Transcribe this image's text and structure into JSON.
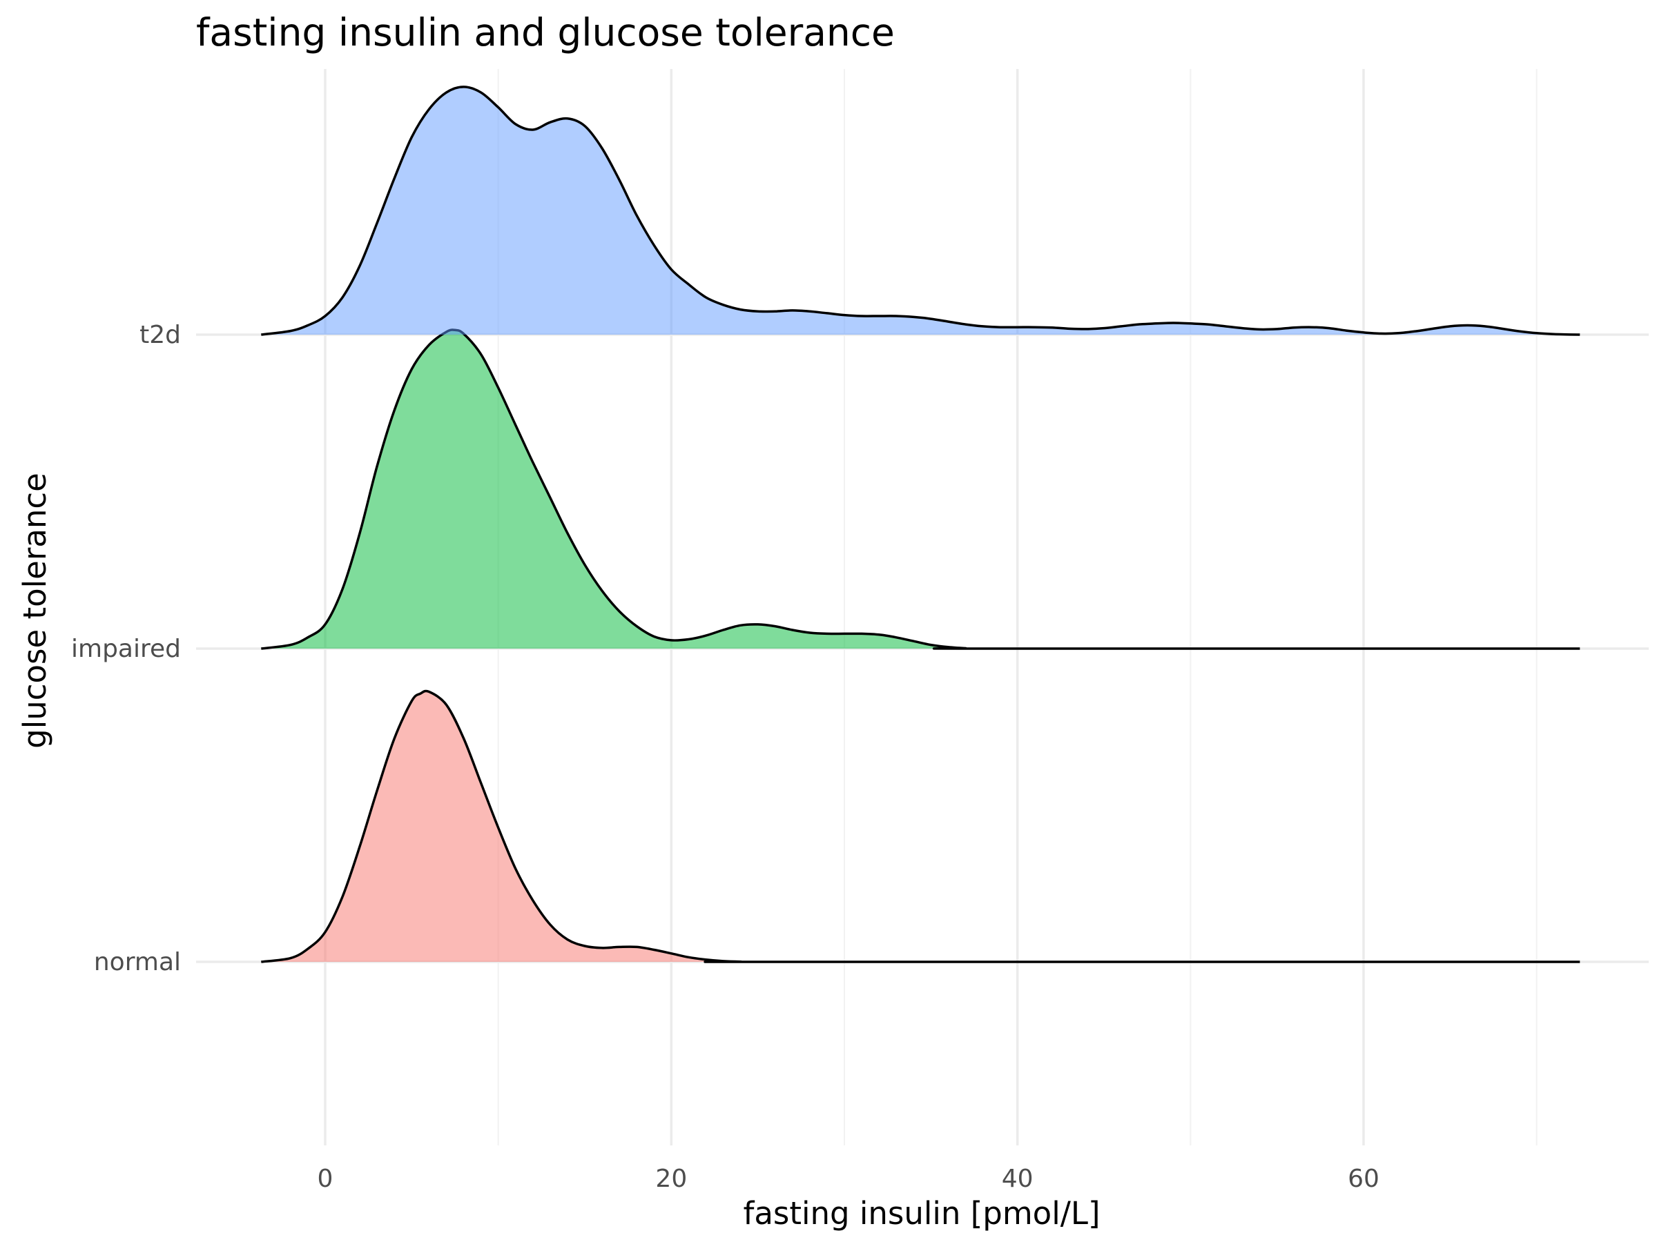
{
  "chart_data": {
    "type": "ridgeline",
    "title": "fasting insulin and glucose tolerance",
    "xlabel": "fasting insulin [pmol/L]",
    "ylabel": "glucose tolerance",
    "x_ticks": [
      0,
      20,
      40,
      60
    ],
    "x_minor_ticks": [
      10,
      30,
      50,
      70
    ],
    "xlim": [
      -9,
      76
    ],
    "grid": true,
    "legend": "none",
    "categories": [
      "normal",
      "impaired",
      "t2d"
    ],
    "series": [
      {
        "name": "normal",
        "color": "#f8766d",
        "density_points": [
          [
            -3.7,
            0.0
          ],
          [
            -2,
            0.02
          ],
          [
            -1,
            0.07
          ],
          [
            0,
            0.16
          ],
          [
            1,
            0.35
          ],
          [
            2,
            0.62
          ],
          [
            3,
            0.92
          ],
          [
            4,
            1.2
          ],
          [
            5,
            1.4
          ],
          [
            5.5,
            1.44
          ],
          [
            6,
            1.45
          ],
          [
            7,
            1.38
          ],
          [
            8,
            1.2
          ],
          [
            9,
            0.96
          ],
          [
            10,
            0.72
          ],
          [
            11,
            0.5
          ],
          [
            12,
            0.33
          ],
          [
            13,
            0.2
          ],
          [
            14,
            0.12
          ],
          [
            15,
            0.085
          ],
          [
            16,
            0.075
          ],
          [
            17,
            0.08
          ],
          [
            18,
            0.08
          ],
          [
            19,
            0.065
          ],
          [
            20,
            0.045
          ],
          [
            21,
            0.025
          ],
          [
            22,
            0.012
          ],
          [
            23,
            0.004
          ],
          [
            24,
            0.001
          ],
          [
            26,
            0.0
          ],
          [
            72.5,
            0.0
          ]
        ]
      },
      {
        "name": "impaired",
        "color": "#00ba38",
        "density_points": [
          [
            -3.7,
            0.0
          ],
          [
            -2,
            0.02
          ],
          [
            -1,
            0.06
          ],
          [
            0,
            0.13
          ],
          [
            1,
            0.32
          ],
          [
            2,
            0.62
          ],
          [
            3,
            0.98
          ],
          [
            4,
            1.28
          ],
          [
            5,
            1.5
          ],
          [
            6,
            1.63
          ],
          [
            7,
            1.7
          ],
          [
            7.5,
            1.71
          ],
          [
            8,
            1.69
          ],
          [
            9,
            1.58
          ],
          [
            10,
            1.4
          ],
          [
            11,
            1.2
          ],
          [
            12,
            1.0
          ],
          [
            13,
            0.81
          ],
          [
            14,
            0.62
          ],
          [
            15,
            0.45
          ],
          [
            16,
            0.31
          ],
          [
            17,
            0.2
          ],
          [
            18,
            0.12
          ],
          [
            19,
            0.065
          ],
          [
            20,
            0.045
          ],
          [
            21,
            0.05
          ],
          [
            22,
            0.07
          ],
          [
            23,
            0.1
          ],
          [
            24,
            0.125
          ],
          [
            25,
            0.13
          ],
          [
            26,
            0.12
          ],
          [
            27,
            0.1
          ],
          [
            28,
            0.085
          ],
          [
            29,
            0.08
          ],
          [
            30,
            0.08
          ],
          [
            31,
            0.08
          ],
          [
            32,
            0.075
          ],
          [
            33,
            0.06
          ],
          [
            34,
            0.04
          ],
          [
            35,
            0.02
          ],
          [
            36,
            0.008
          ],
          [
            37,
            0.002
          ],
          [
            38,
            0.0
          ],
          [
            72.5,
            0.0
          ]
        ]
      },
      {
        "name": "t2d",
        "color": "#619cff",
        "density_points": [
          [
            -3.7,
            0.0
          ],
          [
            -2,
            0.02
          ],
          [
            -1,
            0.05
          ],
          [
            0,
            0.1
          ],
          [
            1,
            0.2
          ],
          [
            2,
            0.37
          ],
          [
            3,
            0.6
          ],
          [
            4,
            0.84
          ],
          [
            5,
            1.06
          ],
          [
            6,
            1.21
          ],
          [
            7,
            1.3
          ],
          [
            8,
            1.33
          ],
          [
            9,
            1.3
          ],
          [
            10,
            1.22
          ],
          [
            11,
            1.13
          ],
          [
            12,
            1.1
          ],
          [
            13,
            1.14
          ],
          [
            14,
            1.16
          ],
          [
            15,
            1.12
          ],
          [
            16,
            1.0
          ],
          [
            17,
            0.83
          ],
          [
            18,
            0.64
          ],
          [
            19,
            0.48
          ],
          [
            20,
            0.35
          ],
          [
            21,
            0.27
          ],
          [
            22,
            0.2
          ],
          [
            23,
            0.16
          ],
          [
            24,
            0.135
          ],
          [
            25,
            0.125
          ],
          [
            26,
            0.125
          ],
          [
            27,
            0.13
          ],
          [
            28,
            0.125
          ],
          [
            29,
            0.115
          ],
          [
            30,
            0.105
          ],
          [
            31,
            0.1
          ],
          [
            32,
            0.1
          ],
          [
            33,
            0.1
          ],
          [
            34,
            0.095
          ],
          [
            35,
            0.085
          ],
          [
            36,
            0.07
          ],
          [
            37,
            0.055
          ],
          [
            38,
            0.045
          ],
          [
            39,
            0.04
          ],
          [
            40,
            0.04
          ],
          [
            41,
            0.04
          ],
          [
            42,
            0.038
          ],
          [
            43,
            0.032
          ],
          [
            44,
            0.03
          ],
          [
            45,
            0.035
          ],
          [
            46,
            0.045
          ],
          [
            47,
            0.055
          ],
          [
            48,
            0.06
          ],
          [
            49,
            0.063
          ],
          [
            50,
            0.06
          ],
          [
            51,
            0.055
          ],
          [
            52,
            0.045
          ],
          [
            53,
            0.035
          ],
          [
            54,
            0.028
          ],
          [
            55,
            0.03
          ],
          [
            56,
            0.038
          ],
          [
            57,
            0.04
          ],
          [
            58,
            0.035
          ],
          [
            59,
            0.022
          ],
          [
            60,
            0.012
          ],
          [
            61,
            0.006
          ],
          [
            62,
            0.008
          ],
          [
            63,
            0.018
          ],
          [
            64,
            0.032
          ],
          [
            65,
            0.045
          ],
          [
            66,
            0.05
          ],
          [
            67,
            0.045
          ],
          [
            68,
            0.032
          ],
          [
            69,
            0.018
          ],
          [
            70,
            0.008
          ],
          [
            71,
            0.003
          ],
          [
            72.5,
            0.0
          ]
        ]
      }
    ]
  }
}
